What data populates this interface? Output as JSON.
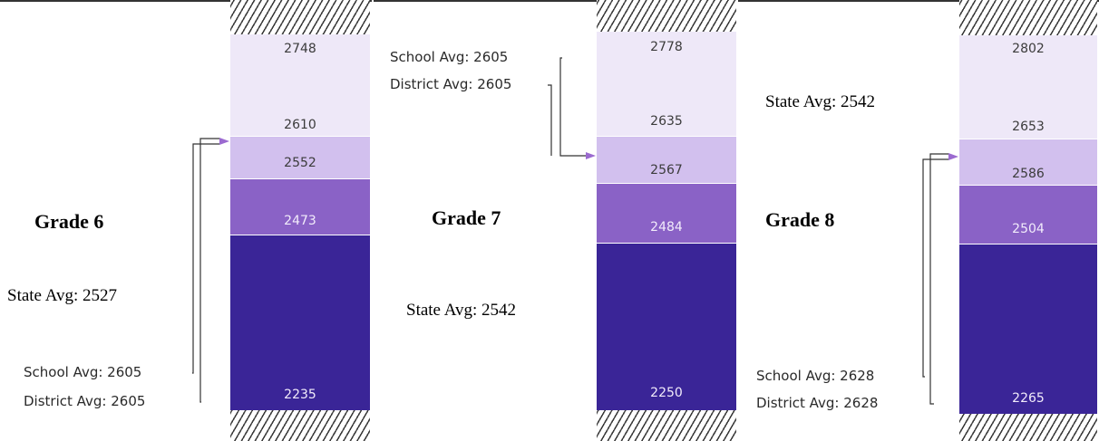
{
  "colors": {
    "band_top": "#eee8f8",
    "band_mid_high": "#d2c0ee",
    "band_mid_low": "#8a62c6",
    "band_bottom": "#3a2597",
    "connector": "#333333",
    "arrow": "#9b6ad0"
  },
  "chart_data": [
    {
      "type": "bar",
      "title": "Grade 6",
      "state_avg_label": "State Avg: 2527",
      "state_avg": 2527,
      "school_avg_label": "School Avg: 2605",
      "school_avg": 2605,
      "district_avg_label": "District Avg: 2605",
      "district_avg": 2605,
      "thresholds": [
        2748,
        2610,
        2552,
        2473,
        2235
      ],
      "threshold_labels": [
        "2748",
        "2610",
        "2552",
        "2473",
        "2235"
      ]
    },
    {
      "type": "bar",
      "title": "Grade 7",
      "state_avg_label": "State Avg: 2542",
      "state_avg": 2542,
      "school_avg_label": "School Avg: 2605",
      "school_avg": 2605,
      "district_avg_label": "District Avg: 2605",
      "district_avg": 2605,
      "thresholds": [
        2778,
        2635,
        2567,
        2484,
        2250
      ],
      "threshold_labels": [
        "2778",
        "2635",
        "2567",
        "2484",
        "2250"
      ]
    },
    {
      "type": "bar",
      "title": "Grade 8",
      "state_avg_label": "State Avg: 2542",
      "state_avg": 2542,
      "school_avg_label": "School Avg: 2628",
      "school_avg": 2628,
      "district_avg_label": "District Avg: 2628",
      "district_avg": 2628,
      "thresholds": [
        2802,
        2653,
        2586,
        2504,
        2265
      ],
      "threshold_labels": [
        "2802",
        "2653",
        "2586",
        "2504",
        "2265"
      ]
    }
  ]
}
